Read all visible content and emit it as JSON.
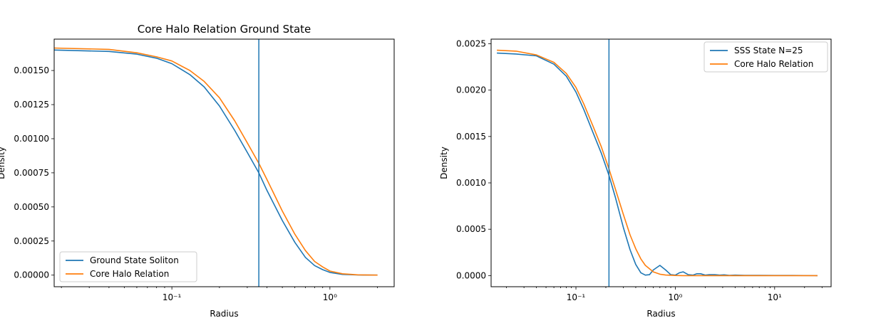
{
  "colors": {
    "series1": "#1f77b4",
    "series2": "#ff7f0e",
    "axis": "#000000"
  },
  "chart_data": [
    {
      "type": "line",
      "title": "Core Halo Relation Ground State",
      "xlabel": "Radius",
      "ylabel": "Density",
      "x_scale": "log",
      "xlim": [
        0.018,
        2.55
      ],
      "ylim": [
        -8.5e-05,
        0.00173
      ],
      "x_ticks": [
        {
          "value": 0.1,
          "label": "10⁻¹"
        },
        {
          "value": 1,
          "label": "10⁰"
        }
      ],
      "y_ticks": [
        {
          "value": 0,
          "label": "0.00000"
        },
        {
          "value": 0.00025,
          "label": "0.00025"
        },
        {
          "value": 0.0005,
          "label": "0.00050"
        },
        {
          "value": 0.00075,
          "label": "0.00075"
        },
        {
          "value": 0.001,
          "label": "0.00100"
        },
        {
          "value": 0.00125,
          "label": "0.00125"
        },
        {
          "value": 0.0015,
          "label": "0.00150"
        }
      ],
      "vline_x": 0.355,
      "legend_position": "lower-left",
      "grid": false,
      "series": [
        {
          "name": "Ground State Soliton",
          "x": [
            0.018,
            0.04,
            0.06,
            0.08,
            0.1,
            0.13,
            0.16,
            0.2,
            0.25,
            0.3,
            0.355,
            0.4,
            0.5,
            0.6,
            0.7,
            0.8,
            0.9,
            1.0,
            1.2,
            1.5,
            2.0
          ],
          "y": [
            0.00165,
            0.00164,
            0.00162,
            0.00159,
            0.00155,
            0.00147,
            0.00138,
            0.00124,
            0.00106,
            0.0009,
            0.00075,
            0.00062,
            0.0004,
            0.00024,
            0.00013,
            7e-05,
            4e-05,
            2e-05,
            5e-06,
            1e-06,
            0.0
          ]
        },
        {
          "name": "Core Halo Relation",
          "x": [
            0.018,
            0.04,
            0.06,
            0.08,
            0.1,
            0.13,
            0.16,
            0.2,
            0.25,
            0.3,
            0.355,
            0.4,
            0.5,
            0.6,
            0.7,
            0.8,
            0.9,
            1.0,
            1.2,
            1.5,
            2.0
          ],
          "y": [
            0.001665,
            0.001655,
            0.00163,
            0.0016,
            0.00157,
            0.0015,
            0.00142,
            0.0013,
            0.00113,
            0.00097,
            0.00082,
            0.0007,
            0.00047,
            0.0003,
            0.00018,
            0.0001,
            6e-05,
            3e-05,
            1e-05,
            2e-06,
            0.0
          ]
        }
      ]
    },
    {
      "type": "line",
      "title": "",
      "xlabel": "Radius",
      "ylabel": "Density",
      "x_scale": "log",
      "xlim": [
        0.014,
        37
      ],
      "ylim": [
        -0.00012,
        0.00255
      ],
      "x_ticks": [
        {
          "value": 0.1,
          "label": "10⁻¹"
        },
        {
          "value": 1,
          "label": "10⁰"
        },
        {
          "value": 10,
          "label": "10¹"
        }
      ],
      "y_ticks": [
        {
          "value": 0,
          "label": "0.0000"
        },
        {
          "value": 0.0005,
          "label": "0.0005"
        },
        {
          "value": 0.001,
          "label": "0.0010"
        },
        {
          "value": 0.0015,
          "label": "0.0015"
        },
        {
          "value": 0.002,
          "label": "0.0020"
        },
        {
          "value": 0.0025,
          "label": "0.0025"
        }
      ],
      "vline_x": 0.215,
      "legend_position": "upper-right",
      "grid": false,
      "series": [
        {
          "name": "SSS State N=25",
          "x": [
            0.016,
            0.025,
            0.04,
            0.06,
            0.08,
            0.1,
            0.12,
            0.15,
            0.18,
            0.215,
            0.25,
            0.3,
            0.35,
            0.4,
            0.45,
            0.5,
            0.55,
            0.6,
            0.7,
            0.8,
            0.9,
            1.0,
            1.1,
            1.2,
            1.35,
            1.5,
            1.65,
            1.8,
            2.0,
            2.2,
            2.5,
            2.8,
            3.1,
            3.5,
            4.0,
            5.0,
            7.0,
            10.0,
            15.0,
            27.0
          ],
          "y": [
            0.0024,
            0.00239,
            0.00237,
            0.00228,
            0.00215,
            0.00198,
            0.00179,
            0.00153,
            0.00132,
            0.00108,
            0.00084,
            0.00052,
            0.00028,
            0.00012,
            3e-05,
            5e-06,
            1e-05,
            6e-05,
            0.00011,
            6e-05,
            1e-05,
            5e-06,
            3e-05,
            4e-05,
            1e-05,
            5e-06,
            2e-05,
            2e-05,
            5e-06,
            1e-05,
            1e-05,
            5e-06,
            8e-06,
            3e-06,
            5e-06,
            2e-06,
            2e-06,
            1e-06,
            1e-06,
            0.0
          ]
        },
        {
          "name": "Core Halo Relation",
          "x": [
            0.016,
            0.025,
            0.04,
            0.06,
            0.08,
            0.1,
            0.12,
            0.15,
            0.18,
            0.215,
            0.25,
            0.3,
            0.35,
            0.4,
            0.45,
            0.5,
            0.6,
            0.7,
            0.8,
            1.0,
            1.2,
            1.5,
            2.0,
            3.0,
            5.0,
            10.0,
            27.0
          ],
          "y": [
            0.00243,
            0.00242,
            0.00238,
            0.0023,
            0.00218,
            0.00203,
            0.00185,
            0.0016,
            0.00139,
            0.00115,
            0.00093,
            0.00066,
            0.00044,
            0.00029,
            0.00018,
            0.00011,
            4e-05,
            1.5e-05,
            6e-06,
            1e-06,
            0.0,
            0.0,
            0.0,
            0.0,
            0.0,
            0.0,
            0.0
          ]
        }
      ]
    }
  ]
}
